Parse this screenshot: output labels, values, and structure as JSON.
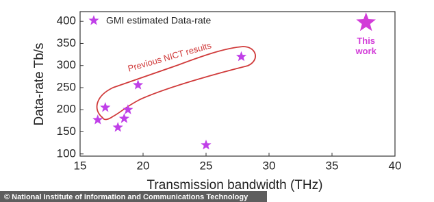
{
  "chart_data": {
    "type": "scatter",
    "x_label": "Transmission bandwidth (THz)",
    "y_label": "Data-rate Tb/s",
    "series": [
      {
        "name": "GMI estimated Data-rate",
        "color": "#c040e8",
        "x": [
          16.4,
          17.0,
          18.0,
          18.5,
          18.8,
          19.6,
          25.0,
          27.8
        ],
        "values": [
          177,
          205,
          160,
          180,
          200,
          256,
          120,
          320
        ]
      }
    ],
    "highlight": {
      "x": 37.7,
      "y": 397,
      "label": "This work",
      "color": "#d23cd8"
    },
    "annotation": "Previous NICT results",
    "xlim": [
      15,
      40
    ],
    "xticks": [
      15,
      20,
      25,
      30,
      35,
      40
    ],
    "ylim": [
      95,
      422
    ],
    "yticks": [
      100,
      150,
      200,
      250,
      300,
      350,
      400
    ],
    "legend": "upper left",
    "credit": "© National Institute of Information and Communications Technology"
  }
}
